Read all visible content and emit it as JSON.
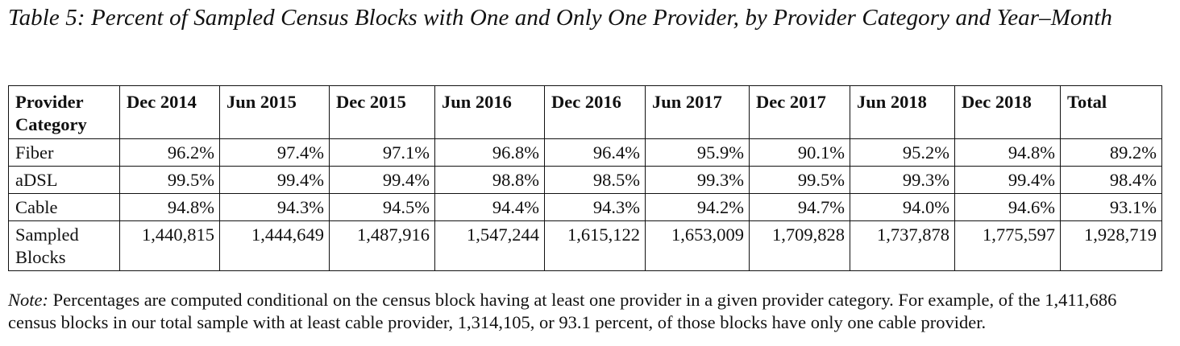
{
  "caption": "Table 5: Percent of Sampled Census Blocks with One and Only One Provider, by Provider Category and Year–Month",
  "table": {
    "columns": [
      "Provider Category",
      "Dec 2014",
      "Jun 2015",
      "Dec 2015",
      "Jun 2016",
      "Dec 2016",
      "Jun 2017",
      "Dec 2017",
      "Jun 2018",
      "Dec 2018",
      "Total"
    ],
    "rows": [
      {
        "label": "Fiber",
        "values": [
          "96.2%",
          "97.4%",
          "97.1%",
          "96.8%",
          "96.4%",
          "95.9%",
          "90.1%",
          "95.2%",
          "94.8%",
          "89.2%"
        ]
      },
      {
        "label": "aDSL",
        "values": [
          "99.5%",
          "99.4%",
          "99.4%",
          "98.8%",
          "98.5%",
          "99.3%",
          "99.5%",
          "99.3%",
          "99.4%",
          "98.4%"
        ]
      },
      {
        "label": "Cable",
        "values": [
          "94.8%",
          "94.3%",
          "94.5%",
          "94.4%",
          "94.3%",
          "94.2%",
          "94.7%",
          "94.0%",
          "94.6%",
          "93.1%"
        ]
      },
      {
        "label": "Sampled Blocks",
        "values": [
          "1,440,815",
          "1,444,649",
          "1,487,916",
          "1,547,244",
          "1,615,122",
          "1,653,009",
          "1,709,828",
          "1,737,878",
          "1,775,597",
          "1,928,719"
        ]
      }
    ]
  },
  "note": {
    "label": "Note:",
    "text": " Percentages are computed conditional on the census block having at least one provider in a given provider category. For example, of the 1,411,686 census blocks in our total sample with at least cable provider, 1,314,105, or 93.1 percent, of those blocks have only one cable provider."
  }
}
